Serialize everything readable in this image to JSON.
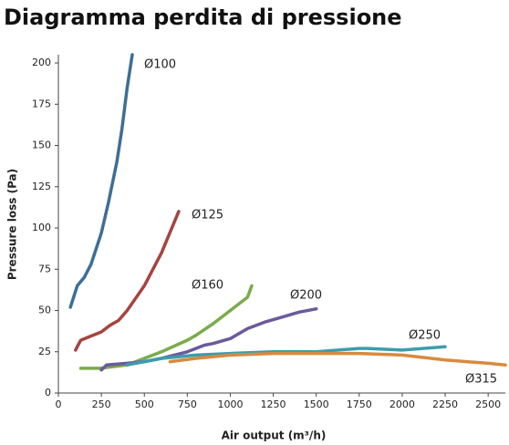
{
  "chart_data": {
    "type": "line",
    "title": "Diagramma perdita di pressione",
    "x_label": "Air output (m³/h)",
    "y_label": "Pressure loss (Pa)",
    "xlim": [
      0,
      2600
    ],
    "ylim": [
      0,
      205
    ],
    "xticks": [
      0,
      250,
      500,
      750,
      1000,
      1250,
      1500,
      1750,
      2000,
      2250,
      2500
    ],
    "yticks": [
      0,
      25,
      50,
      75,
      100,
      125,
      150,
      175,
      200
    ],
    "grid": false,
    "series": [
      {
        "name": "Ø100",
        "color": "#3e6e95",
        "x": [
          70,
          110,
          150,
          190,
          250,
          290,
          340,
          370,
          400,
          430
        ],
        "values": [
          52,
          65,
          70,
          78,
          97,
          115,
          140,
          160,
          185,
          205
        ]
      },
      {
        "name": "Ø125",
        "color": "#a5443f",
        "x": [
          100,
          130,
          200,
          250,
          300,
          350,
          400,
          500,
          600,
          700
        ],
        "values": [
          26,
          32,
          35,
          37,
          41,
          44,
          50,
          65,
          85,
          110
        ]
      },
      {
        "name": "Ø160",
        "color": "#7bab4b",
        "x": [
          130,
          240,
          400,
          500,
          600,
          750,
          800,
          900,
          1000,
          1100,
          1125
        ],
        "values": [
          15,
          15,
          17,
          21,
          25,
          32,
          35,
          42,
          50,
          58,
          65
        ]
      },
      {
        "name": "Ø200",
        "color": "#6b5a9c",
        "x": [
          250,
          280,
          400,
          500,
          600,
          750,
          850,
          900,
          1000,
          1100,
          1200,
          1300,
          1400,
          1500
        ],
        "values": [
          14,
          17,
          18,
          19,
          21,
          25,
          29,
          30,
          33,
          39,
          43,
          46,
          49,
          51
        ]
      },
      {
        "name": "Ø250",
        "color": "#3d9cad",
        "x": [
          400,
          500,
          600,
          800,
          1000,
          1250,
          1500,
          1750,
          1800,
          2000,
          2250
        ],
        "values": [
          17,
          19,
          21,
          23,
          24,
          25,
          25,
          27,
          27,
          26,
          28
        ]
      },
      {
        "name": "Ø315",
        "color": "#d98a3d",
        "x": [
          650,
          800,
          1000,
          1250,
          1500,
          1750,
          2000,
          2250,
          2500,
          2600
        ],
        "values": [
          19,
          21,
          23,
          24,
          24,
          24,
          23,
          20,
          18,
          17
        ]
      }
    ]
  }
}
